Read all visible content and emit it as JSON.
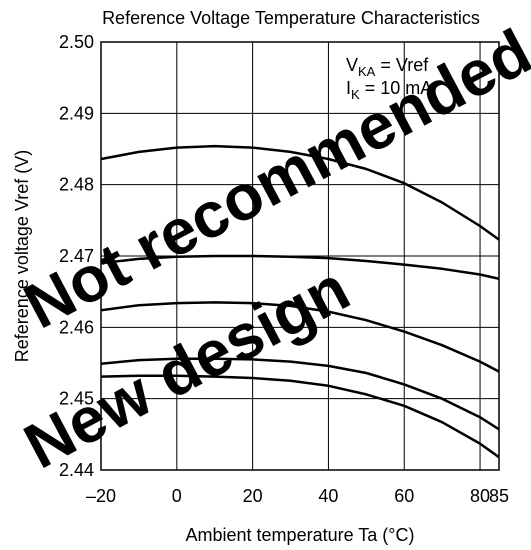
{
  "chart_data": {
    "type": "line",
    "title": "Reference Voltage Temperature Characteristics",
    "xlabel": "Ambient temperature  Ta  (°C)",
    "ylabel": "Reference voltage  Vref  (V)",
    "xlim": [
      -20,
      85
    ],
    "ylim": [
      2.44,
      2.5
    ],
    "grid": true,
    "x_ticks": [
      -20,
      0,
      20,
      40,
      60,
      80,
      85
    ],
    "x_tick_labels": [
      "–20",
      "0",
      "20",
      "40",
      "60",
      "80",
      "85"
    ],
    "y_ticks": [
      2.44,
      2.45,
      2.46,
      2.47,
      2.48,
      2.49,
      2.5
    ],
    "y_tick_labels": [
      "2.44",
      "2.45",
      "2.46",
      "2.47",
      "2.48",
      "2.49",
      "2.50"
    ],
    "conditions": {
      "line1_main": "V",
      "line1_sub": "KA",
      "line1_rest": " = Vref",
      "line2_main": "I",
      "line2_sub": "K",
      "line2_rest": " = 10 mA"
    },
    "x": [
      -20,
      -10,
      0,
      10,
      20,
      30,
      40,
      50,
      60,
      70,
      80,
      85
    ],
    "series": [
      {
        "values": [
          2.4836,
          2.4846,
          2.4852,
          2.4854,
          2.4852,
          2.4846,
          2.4836,
          2.4822,
          2.4802,
          2.4775,
          2.4742,
          2.4723
        ]
      },
      {
        "values": [
          2.469,
          2.4696,
          2.4699,
          2.47,
          2.47,
          2.4699,
          2.4697,
          2.4693,
          2.4688,
          2.4682,
          2.4674,
          2.4668
        ]
      },
      {
        "values": [
          2.4624,
          2.4631,
          2.4634,
          2.4635,
          2.4634,
          2.463,
          2.4622,
          2.461,
          2.4594,
          2.4575,
          2.4552,
          2.4538
        ]
      },
      {
        "values": [
          2.4549,
          2.4554,
          2.4556,
          2.4556,
          2.4555,
          2.4552,
          2.4546,
          2.4536,
          2.452,
          2.45,
          2.4474,
          2.4457
        ]
      },
      {
        "values": [
          2.4531,
          2.4532,
          2.4532,
          2.4531,
          2.4529,
          2.4525,
          2.4518,
          2.4506,
          2.449,
          2.4467,
          2.4437,
          2.4418
        ]
      }
    ]
  },
  "watermark": {
    "color": "#ff0000",
    "lines": [
      "New design",
      "Not recommended for new design"
    ]
  }
}
